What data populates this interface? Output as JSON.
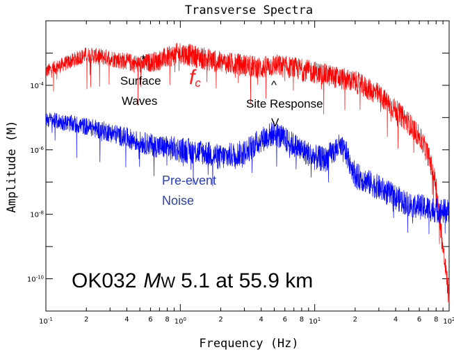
{
  "chart_data": {
    "type": "line",
    "title": "Transverse Spectra",
    "xlabel": "Frequency (Hz)",
    "ylabel": "Amplitude (M)",
    "x_scale": "log",
    "y_scale": "log",
    "xlim": [
      0.1,
      100
    ],
    "ylim": [
      1e-11,
      0.01
    ],
    "grid": false,
    "x_ticks": [
      {
        "base": "10",
        "exp": "-1",
        "value": 0.1
      },
      {
        "base": "10",
        "exp": "0",
        "value": 1
      },
      {
        "base": "10",
        "exp": "1",
        "value": 10
      },
      {
        "base": "10",
        "exp": "2",
        "value": 100
      }
    ],
    "x_minor_labels": [
      "2",
      "4",
      "6",
      "8"
    ],
    "y_ticks": [
      {
        "base": "10",
        "exp": "-4",
        "value": 0.0001
      },
      {
        "base": "10",
        "exp": "-6",
        "value": 1e-06
      },
      {
        "base": "10",
        "exp": "-8",
        "value": 1e-08
      },
      {
        "base": "10",
        "exp": "-10",
        "value": 1e-10
      }
    ],
    "series": [
      {
        "color": "#ff0000",
        "points": [
          [
            0.1,
            0.0003
          ],
          [
            0.15,
            0.0006
          ],
          [
            0.2,
            0.001
          ],
          [
            0.3,
            0.0008
          ],
          [
            0.5,
            0.0005
          ],
          [
            0.7,
            0.0007
          ],
          [
            1.0,
            0.0012
          ],
          [
            1.5,
            0.0008
          ],
          [
            2.0,
            0.0006
          ],
          [
            3.0,
            0.0005
          ],
          [
            4.0,
            0.0004
          ],
          [
            5.0,
            0.0005
          ],
          [
            7.0,
            0.0004
          ],
          [
            10,
            0.0003
          ],
          [
            15,
            0.0002
          ],
          [
            20,
            0.00015
          ],
          [
            30,
            6e-05
          ],
          [
            40,
            2e-05
          ],
          [
            50,
            8e-06
          ],
          [
            60,
            3e-06
          ],
          [
            70,
            8e-07
          ],
          [
            80,
            1e-07
          ],
          [
            90,
            1e-09
          ],
          [
            100,
            3e-11
          ]
        ]
      },
      {
        "color": "#0000ff",
        "points": [
          [
            0.1,
            1e-05
          ],
          [
            0.2,
            6e-06
          ],
          [
            0.3,
            4e-06
          ],
          [
            0.5,
            2e-06
          ],
          [
            0.7,
            1.5e-06
          ],
          [
            1.0,
            1.2e-06
          ],
          [
            1.5,
            1e-06
          ],
          [
            2.0,
            7e-07
          ],
          [
            3.0,
            1e-06
          ],
          [
            4.0,
            2.5e-06
          ],
          [
            5.0,
            4e-06
          ],
          [
            6.0,
            2.5e-06
          ],
          [
            8.0,
            1.2e-06
          ],
          [
            10,
            7e-07
          ],
          [
            12,
            6e-07
          ],
          [
            15,
            1.5e-06
          ],
          [
            17,
            1e-06
          ],
          [
            20,
            2e-07
          ],
          [
            30,
            8e-08
          ],
          [
            40,
            4e-08
          ],
          [
            50,
            2.5e-08
          ],
          [
            70,
            1.8e-08
          ],
          [
            90,
            1.5e-08
          ],
          [
            100,
            1.5e-08
          ]
        ]
      }
    ],
    "annotations": {
      "surface_waves_star": "*",
      "surface_waves_line1": "Surface",
      "surface_waves_line2": "Waves",
      "fc_main": "f",
      "fc_sub": "c",
      "site_caret": "^",
      "site_response": "Site Response",
      "site_v": "V",
      "noise_line1": "Pre-event",
      "noise_line2": "Noise",
      "event_station": "OK032",
      "event_m": "M",
      "event_w": "W",
      "event_rest": "5.1 at 55.9 km"
    }
  }
}
